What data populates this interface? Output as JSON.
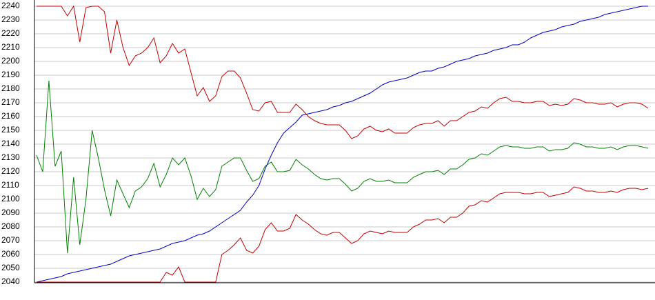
{
  "chart_data": {
    "type": "line",
    "ylim": [
      2040,
      2240
    ],
    "yticks": [
      2040,
      2050,
      2060,
      2070,
      2080,
      2090,
      2100,
      2110,
      2120,
      2130,
      2140,
      2150,
      2160,
      2170,
      2180,
      2190,
      2200,
      2210,
      2220,
      2230,
      2240
    ],
    "grid": true,
    "series": [
      {
        "color": "#0000c0",
        "values": [
          2040,
          2041,
          2042,
          2043,
          2044,
          2046,
          2047,
          2048,
          2049,
          2050,
          2051,
          2052,
          2053,
          2055,
          2057,
          2059,
          2060,
          2061,
          2062,
          2063,
          2064,
          2066,
          2068,
          2069,
          2070,
          2072,
          2074,
          2075,
          2077,
          2080,
          2083,
          2086,
          2089,
          2092,
          2098,
          2103,
          2110,
          2122,
          2132,
          2141,
          2148,
          2152,
          2156,
          2161,
          2162,
          2163,
          2164,
          2165,
          2167,
          2168,
          2170,
          2171,
          2173,
          2175,
          2177,
          2180,
          2183,
          2185,
          2186,
          2187,
          2188,
          2190,
          2192,
          2193,
          2193,
          2195,
          2196,
          2198,
          2200,
          2201,
          2202,
          2204,
          2205,
          2206,
          2208,
          2209,
          2210,
          2212,
          2212,
          2214,
          2217,
          2219,
          2221,
          2222,
          2223,
          2225,
          2226,
          2227,
          2229,
          2230,
          2231,
          2232,
          2234,
          2235,
          2236,
          2237,
          2238,
          2239,
          2240,
          2240
        ]
      },
      {
        "color": "#c00000",
        "values": [
          2240,
          2240,
          2240,
          2240,
          2240,
          2233,
          2240,
          2214,
          2239,
          2240,
          2240,
          2236,
          2206,
          2230,
          2210,
          2197,
          2204,
          2206,
          2210,
          2217,
          2199,
          2204,
          2213,
          2206,
          2209,
          2192,
          2175,
          2181,
          2171,
          2175,
          2189,
          2193,
          2193,
          2188,
          2177,
          2165,
          2164,
          2170,
          2171,
          2163,
          2163,
          2163,
          2169,
          2165,
          2160,
          2157,
          2155,
          2154,
          2154,
          2154,
          2150,
          2144,
          2146,
          2151,
          2153,
          2150,
          2149,
          2151,
          2148,
          2148,
          2148,
          2152,
          2154,
          2155,
          2155,
          2157,
          2153,
          2157,
          2157,
          2160,
          2163,
          2164,
          2167,
          2166,
          2170,
          2173,
          2174,
          2171,
          2171,
          2170,
          2170,
          2171,
          2171,
          2168,
          2169,
          2168,
          2169,
          2173,
          2172,
          2170,
          2170,
          2169,
          2169,
          2170,
          2167,
          2169,
          2170,
          2170,
          2169,
          2166
        ]
      },
      {
        "color": "#008000",
        "values": [
          2132,
          2120,
          2186,
          2124,
          2135,
          2061,
          2116,
          2067,
          2100,
          2150,
          2130,
          2107,
          2088,
          2114,
          2104,
          2094,
          2106,
          2109,
          2115,
          2126,
          2109,
          2118,
          2130,
          2125,
          2130,
          2117,
          2100,
          2108,
          2102,
          2107,
          2124,
          2127,
          2130,
          2130,
          2121,
          2113,
          2115,
          2124,
          2127,
          2120,
          2120,
          2121,
          2129,
          2125,
          2122,
          2118,
          2115,
          2114,
          2115,
          2115,
          2111,
          2106,
          2108,
          2113,
          2115,
          2113,
          2113,
          2114,
          2112,
          2112,
          2112,
          2116,
          2118,
          2120,
          2120,
          2121,
          2118,
          2122,
          2122,
          2125,
          2129,
          2130,
          2133,
          2132,
          2135,
          2138,
          2139,
          2138,
          2138,
          2137,
          2137,
          2138,
          2138,
          2135,
          2136,
          2136,
          2137,
          2141,
          2140,
          2138,
          2138,
          2137,
          2137,
          2138,
          2136,
          2138,
          2139,
          2139,
          2138,
          2137
        ]
      },
      {
        "color": "#c00000",
        "values": [
          2040,
          2040,
          2040,
          2040,
          2040,
          2040,
          2040,
          2040,
          2040,
          2040,
          2040,
          2040,
          2040,
          2040,
          2040,
          2040,
          2040,
          2040,
          2040,
          2040,
          2040,
          2047,
          2045,
          2051,
          2040,
          2040,
          2040,
          2040,
          2040,
          2040,
          2060,
          2063,
          2067,
          2072,
          2063,
          2061,
          2066,
          2078,
          2083,
          2077,
          2077,
          2079,
          2089,
          2085,
          2082,
          2078,
          2075,
          2074,
          2076,
          2076,
          2072,
          2068,
          2070,
          2075,
          2077,
          2076,
          2075,
          2077,
          2076,
          2076,
          2076,
          2080,
          2082,
          2085,
          2085,
          2086,
          2083,
          2087,
          2087,
          2090,
          2095,
          2096,
          2099,
          2098,
          2101,
          2104,
          2105,
          2105,
          2105,
          2104,
          2104,
          2105,
          2105,
          2102,
          2103,
          2104,
          2105,
          2109,
          2108,
          2106,
          2106,
          2105,
          2105,
          2106,
          2105,
          2107,
          2108,
          2108,
          2107,
          2108
        ]
      }
    ]
  }
}
